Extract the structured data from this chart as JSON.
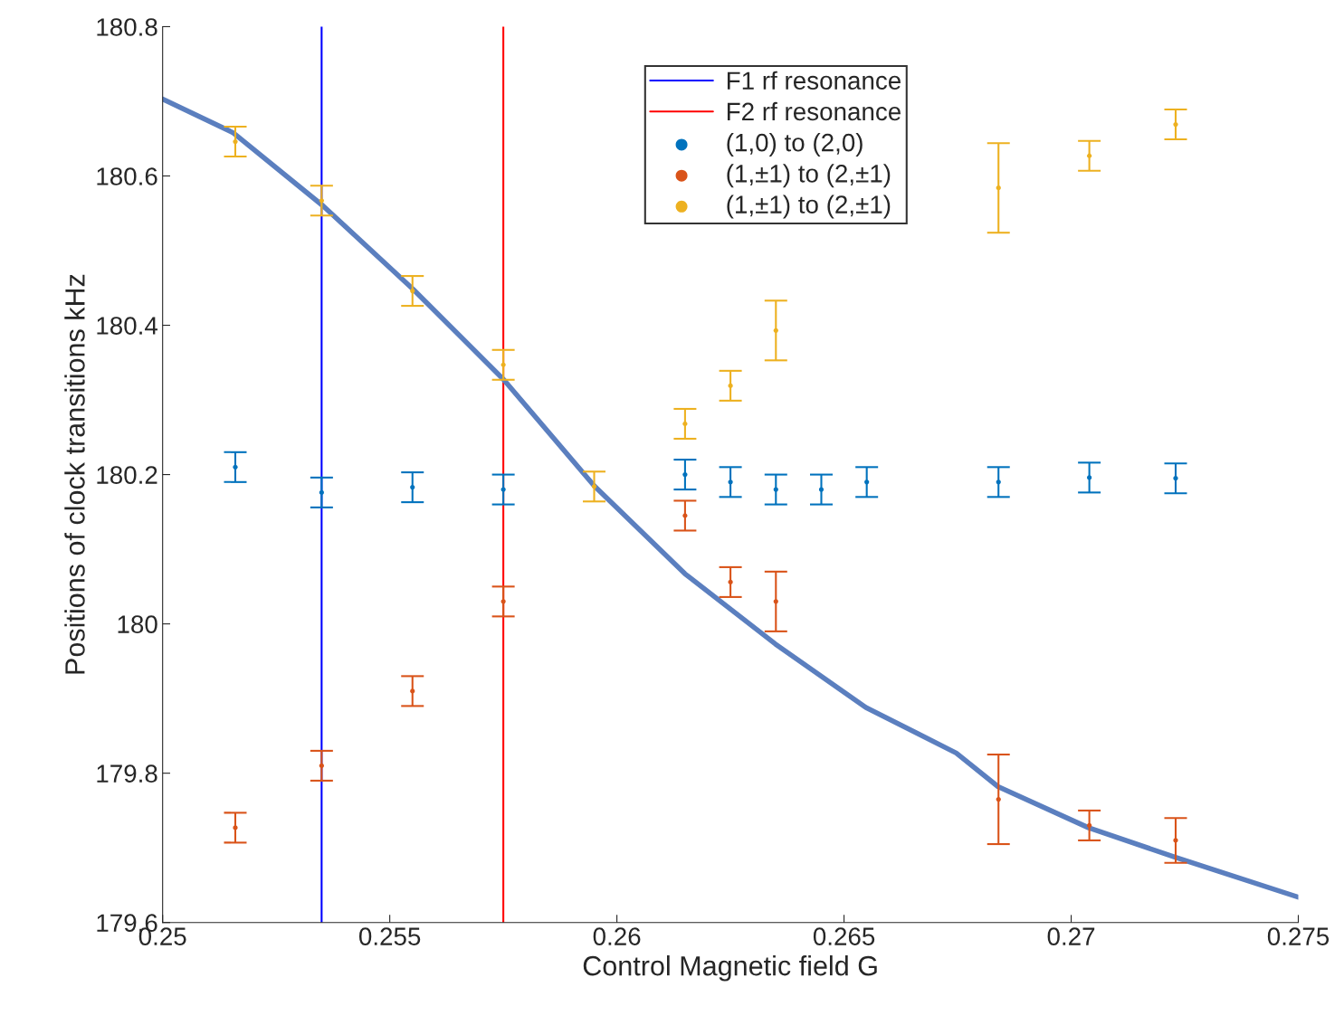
{
  "chart_data": {
    "type": "scatter",
    "xlabel": "Control Magnetic field G",
    "ylabel": "Positions of clock transitions kHz",
    "xlim": [
      0.25,
      0.275
    ],
    "ylim": [
      179.6,
      180.8
    ],
    "xticks": [
      0.25,
      0.255,
      0.26,
      0.265,
      0.27,
      0.275
    ],
    "yticks": [
      179.6,
      179.8,
      180,
      180.2,
      180.4,
      180.6,
      180.8
    ],
    "legend": "top",
    "marker": "circle",
    "grid": false,
    "series": [
      {
        "type": "line",
        "name": "F1 rf resonance",
        "color": "#0000ff",
        "marker": "none",
        "line_style": "solid",
        "x": [
          0.2535,
          0.2535
        ],
        "values": [
          179.6,
          180.8
        ]
      },
      {
        "type": "line",
        "name": "F2 rf resonance",
        "color": "#ff0000",
        "marker": "none",
        "line_style": "solid",
        "x": [
          0.2575,
          0.2575
        ],
        "values": [
          179.6,
          180.8
        ]
      },
      {
        "type": "line",
        "color": "#5b7fbf",
        "marker": "none",
        "line_style": "solid",
        "x": [
          0.25,
          0.25155,
          0.25353,
          0.25552,
          0.25751,
          0.2595,
          0.2615,
          0.26349,
          0.26548,
          0.26747,
          0.26839,
          0.27038,
          0.27231,
          0.275
        ],
        "values": [
          180.703,
          180.658,
          180.56,
          180.448,
          180.327,
          180.185,
          180.067,
          179.973,
          179.888,
          179.827,
          179.782,
          179.727,
          179.687,
          179.634
        ]
      },
      {
        "name": "(1,0) to (2,0)",
        "color": "#0072bd",
        "x": [
          0.2516,
          0.2535,
          0.2555,
          0.2575,
          0.2595,
          0.2615,
          0.2625,
          0.2635,
          0.2645,
          0.2655,
          0.2684,
          0.2704,
          0.2723
        ],
        "values": [
          180.21,
          180.176,
          180.183,
          180.18,
          null,
          180.2,
          180.19,
          180.18,
          180.18,
          180.19,
          180.19,
          180.196,
          180.195
        ],
        "errors": [
          0.02,
          0.02,
          0.02,
          0.02,
          null,
          0.02,
          0.02,
          0.02,
          0.02,
          0.02,
          0.02,
          0.02,
          0.02
        ]
      },
      {
        "name": "(1,±1) to (2,±1)",
        "color": "#d95319",
        "x": [
          0.2516,
          0.2535,
          0.2555,
          0.2575,
          0.2615,
          0.2625,
          0.2635,
          0.2684,
          0.2704,
          0.2723
        ],
        "values": [
          179.727,
          179.81,
          179.91,
          180.03,
          180.145,
          180.056,
          180.03,
          179.765,
          179.73,
          179.71
        ],
        "errors": [
          0.02,
          0.02,
          0.02,
          0.02,
          0.02,
          0.02,
          0.04,
          0.06,
          0.02,
          0.03
        ]
      },
      {
        "name": "(1,±1) to (2,±1)",
        "color": "#edb120",
        "x": [
          0.2516,
          0.2535,
          0.2555,
          0.2575,
          0.2595,
          0.2615,
          0.2625,
          0.2635,
          0.2684,
          0.2704,
          0.2723
        ],
        "values": [
          180.646,
          180.567,
          180.446,
          180.347,
          180.184,
          180.268,
          180.319,
          180.393,
          180.584,
          180.627,
          180.669
        ],
        "errors": [
          0.02,
          0.02,
          0.02,
          0.02,
          0.02,
          0.02,
          0.02,
          0.04,
          0.06,
          0.02,
          0.02
        ]
      }
    ]
  }
}
